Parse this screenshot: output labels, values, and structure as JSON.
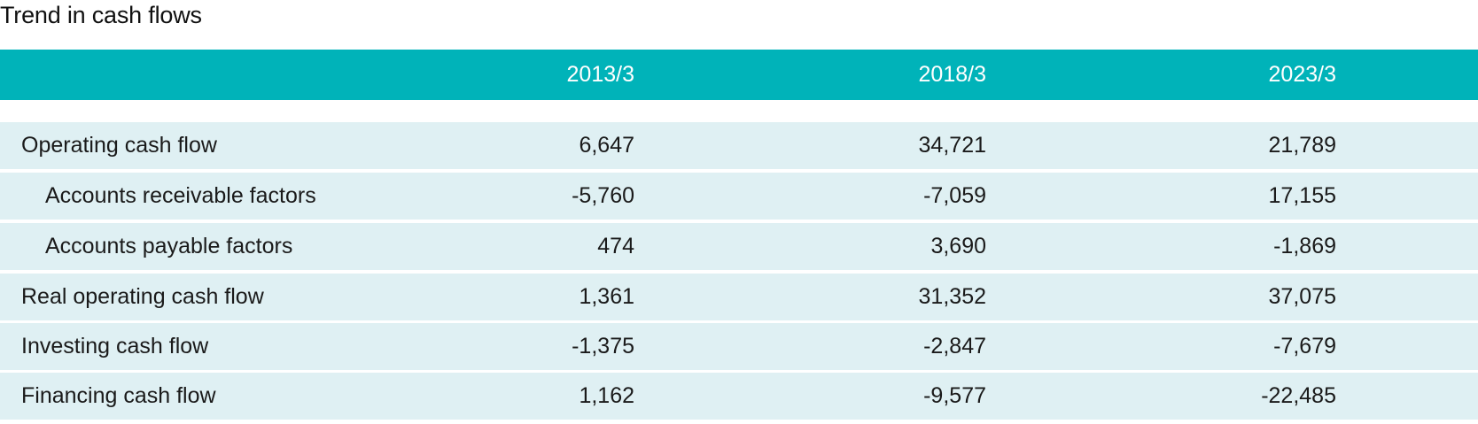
{
  "title": "Trend in cash flows",
  "columns": [
    "",
    "2013/3",
    "2018/3",
    "2023/3"
  ],
  "rows": [
    {
      "label": "Operating cash flow",
      "indent": false,
      "values": [
        "6,647",
        "34,721",
        "21,789"
      ]
    },
    {
      "label": "Accounts receivable factors",
      "indent": true,
      "values": [
        "-5,760",
        "-7,059",
        "17,155"
      ]
    },
    {
      "label": "Accounts payable factors",
      "indent": true,
      "values": [
        "474",
        "3,690",
        "-1,869"
      ]
    },
    {
      "label": "Real operating cash flow",
      "indent": false,
      "values": [
        "1,361",
        "31,352",
        "37,075"
      ]
    },
    {
      "label": "Investing cash flow",
      "indent": false,
      "values": [
        "-1,375",
        "-2,847",
        "-7,679"
      ]
    },
    {
      "label": "Financing cash flow",
      "indent": false,
      "values": [
        "1,162",
        "-9,577",
        "-22,485"
      ]
    }
  ],
  "colors": {
    "header_bg": "#00b3b9",
    "row_bg": "#dff0f3",
    "header_text": "#ffffff"
  }
}
